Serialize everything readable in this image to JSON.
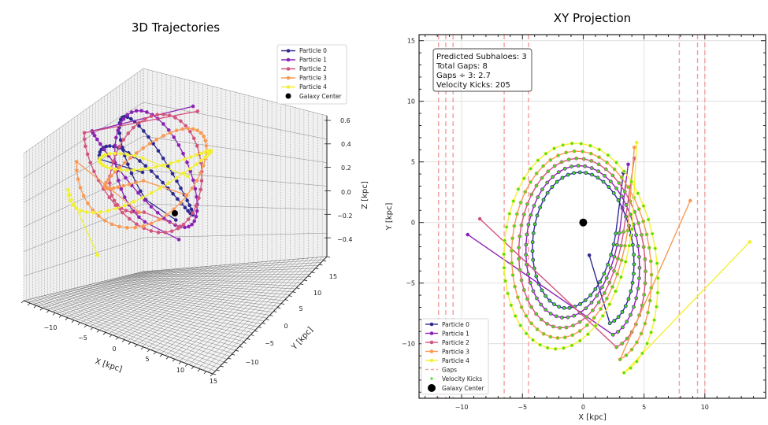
{
  "figure": {
    "particle_colors": [
      "#2f2a8f",
      "#8b22b5",
      "#d1557f",
      "#f89a55",
      "#f2f034"
    ],
    "kick_color": "#44e01a",
    "gap_color": "#f4a3a3",
    "center_color": "#000000"
  },
  "chart_data": [
    {
      "type": "line3d",
      "title": "3D Trajectories",
      "xlabel": "X [kpc]",
      "ylabel": "Y [kpc]",
      "zlabel": "Z [kpc]",
      "xticks": [
        "−10",
        "−5",
        "0",
        "5",
        "10",
        "15"
      ],
      "yticks": [
        "−10",
        "−5",
        "0",
        "5",
        "10",
        "15"
      ],
      "zticks": [
        "−0.4",
        "−0.2",
        "0.0",
        "0.2",
        "0.4",
        "0.6"
      ],
      "xlim": [
        -14,
        15
      ],
      "ylim": [
        -14,
        15
      ],
      "zlim": [
        -0.5,
        0.6
      ],
      "grid": true,
      "legend": {
        "position": "top-right",
        "entries": [
          "Particle 0",
          "Particle 1",
          "Particle 2",
          "Particle 3",
          "Particle 4",
          "Galaxy Center"
        ]
      },
      "galaxy_center": [
        0,
        0,
        0
      ]
    },
    {
      "type": "line",
      "title": "XY Projection",
      "xlabel": "X [kpc]",
      "ylabel": "Y [kpc]",
      "xlim": [
        -13.5,
        15
      ],
      "ylim": [
        -14.5,
        15.5
      ],
      "xticks": [
        -10,
        -5,
        0,
        5,
        10
      ],
      "yticks": [
        -10,
        -5,
        0,
        5,
        10,
        15
      ],
      "xtick_labels": [
        "−10",
        "−5",
        "0",
        "5",
        "10"
      ],
      "ytick_labels": [
        "−10",
        "−5",
        "0",
        "5",
        "10",
        "15"
      ],
      "grid": true,
      "gaps_x": [
        -11.9,
        -11.3,
        -10.7,
        -6.5,
        -4.5,
        7.9,
        9.4,
        10.0
      ],
      "galaxy_center": [
        0,
        0
      ],
      "info_box": [
        "Predicted Subhaloes: 3",
        "Total Gaps: 8",
        "Gaps ÷ 3: 2.7",
        "Velocity Kicks: 205"
      ],
      "legend": {
        "position": "bottom-left",
        "entries": [
          "Particle 0",
          "Particle 1",
          "Particle 2",
          "Particle 3",
          "Particle 4",
          "Gaps",
          "Velocity Kicks",
          "Galaxy Center"
        ]
      },
      "series": [
        {
          "name": "Particle 0",
          "start": [
            0.5,
            -2.7
          ],
          "end": [
            3.3,
            4.1
          ],
          "scale": 1.0,
          "phase": 0.0
        },
        {
          "name": "Particle 1",
          "start": [
            -9.5,
            -1.0
          ],
          "end": [
            3.7,
            4.8
          ],
          "scale": 1.12,
          "phase": 0.25
        },
        {
          "name": "Particle 2",
          "start": [
            -8.5,
            0.3
          ],
          "end": [
            4.2,
            5.3
          ],
          "scale": 1.25,
          "phase": 0.5
        },
        {
          "name": "Particle 3",
          "start": [
            8.8,
            1.8
          ],
          "end": [
            4.2,
            6.2
          ],
          "scale": 1.38,
          "phase": 0.75
        },
        {
          "name": "Particle 4",
          "start": [
            13.7,
            -1.6
          ],
          "end": [
            4.4,
            6.6
          ],
          "scale": 1.52,
          "phase": 1.0
        }
      ]
    }
  ]
}
